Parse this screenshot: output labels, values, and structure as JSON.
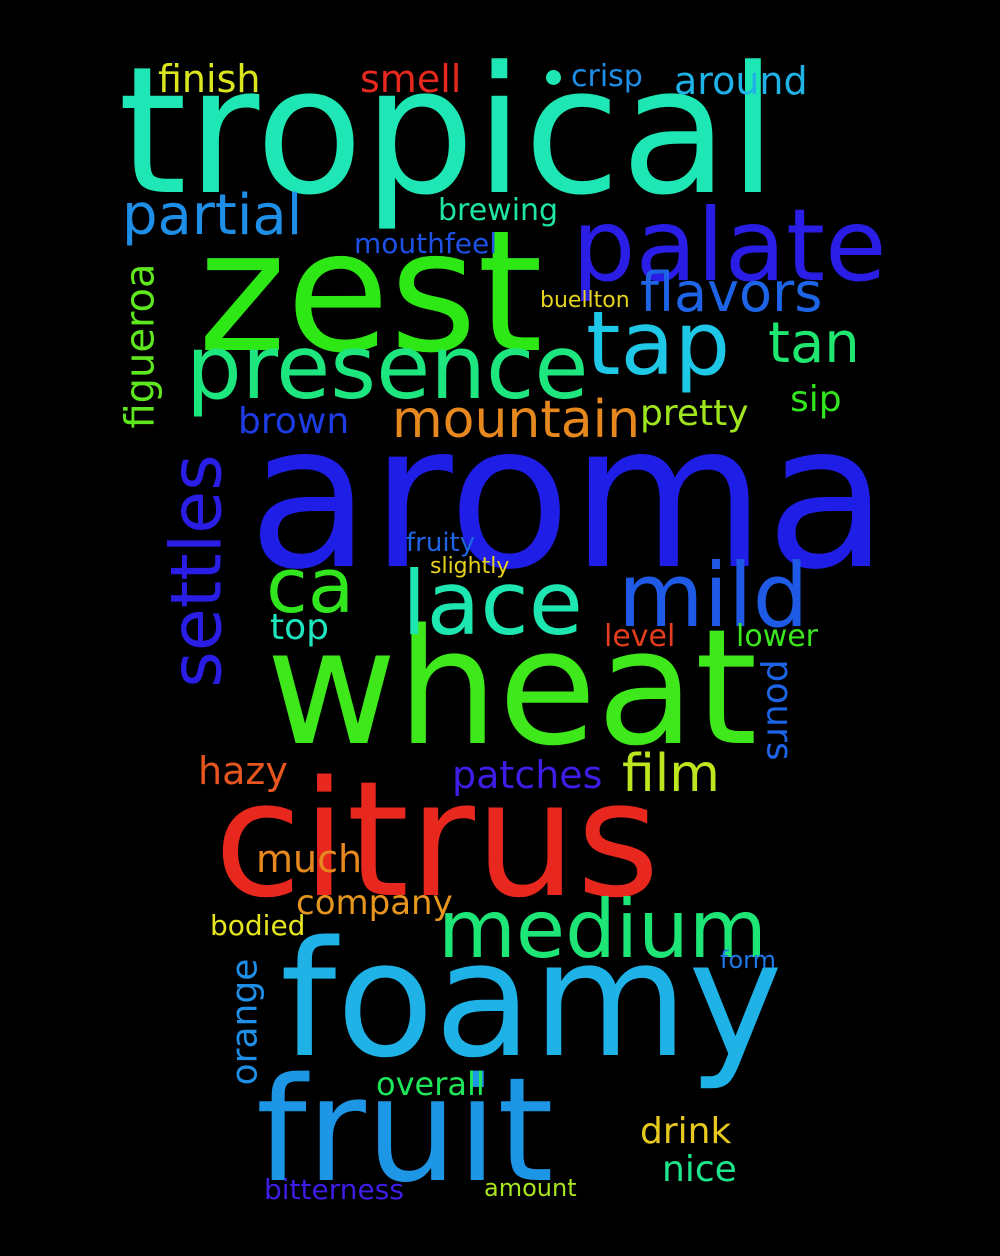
{
  "words": {
    "tropical": {
      "text": "tropical",
      "color": "#1ee6b4"
    },
    "zest": {
      "text": "zest",
      "color": "#2ee816"
    },
    "palate": {
      "text": "palate",
      "color": "#2a1ee6"
    },
    "aroma": {
      "text": "aroma",
      "color": "#1e1ee6"
    },
    "wheat": {
      "text": "wheat",
      "color": "#3ee81a"
    },
    "citrus": {
      "text": "citrus",
      "color": "#e8281e"
    },
    "foamy": {
      "text": "foamy",
      "color": "#1eb2e6"
    },
    "fruit": {
      "text": "fruit",
      "color": "#1e96e6"
    },
    "presence": {
      "text": "presence",
      "color": "#1ee67e"
    },
    "tap": {
      "text": "tap",
      "color": "#1ec8e6"
    },
    "lace": {
      "text": "lace",
      "color": "#1ee6b0"
    },
    "mild": {
      "text": "mild",
      "color": "#1e5ae6"
    },
    "ca": {
      "text": "ca",
      "color": "#32e61e"
    },
    "medium": {
      "text": "medium",
      "color": "#1ee676"
    },
    "partial": {
      "text": "partial",
      "color": "#1e8ee6"
    },
    "flavors": {
      "text": "flavors",
      "color": "#1e64e6"
    },
    "tan": {
      "text": "tan",
      "color": "#1ee66e"
    },
    "mountain": {
      "text": "mountain",
      "color": "#e6881e"
    },
    "film": {
      "text": "film",
      "color": "#bee61e"
    },
    "settles": {
      "text": "settles",
      "color": "#2a1ee6"
    },
    "figueroa": {
      "text": "figueroa",
      "color": "#5ee61e"
    },
    "pours": {
      "text": "pours",
      "color": "#1e64e6"
    },
    "orange": {
      "text": "orange",
      "color": "#1e8ee6"
    },
    "finish": {
      "text": "finish",
      "color": "#dce61e"
    },
    "smell": {
      "text": "smell",
      "color": "#e6281e"
    },
    "crisp": {
      "text": "crisp",
      "color": "#1e8ee6"
    },
    "crisp_dot": {
      "color": "#1ee6b4"
    },
    "around": {
      "text": "around",
      "color": "#1eb2e6"
    },
    "brewing": {
      "text": "brewing",
      "color": "#1ee6a0"
    },
    "mouthfeel": {
      "text": "mouthfeel",
      "color": "#1e50e6"
    },
    "buellton": {
      "text": "buellton",
      "color": "#e6d21e"
    },
    "brown": {
      "text": "brown",
      "color": "#1e3ce6"
    },
    "pretty": {
      "text": "pretty",
      "color": "#a0e61e"
    },
    "sip": {
      "text": "sip",
      "color": "#32e61e"
    },
    "fruity": {
      "text": "fruity",
      "color": "#1e64e6"
    },
    "slightly": {
      "text": "slightly",
      "color": "#e6d21e"
    },
    "top": {
      "text": "top",
      "color": "#1ee6be"
    },
    "level": {
      "text": "level",
      "color": "#e63c1e"
    },
    "lower": {
      "text": "lower",
      "color": "#3ce61e"
    },
    "hazy": {
      "text": "hazy",
      "color": "#e6561e"
    },
    "patches": {
      "text": "patches",
      "color": "#3c1ee6"
    },
    "much": {
      "text": "much",
      "color": "#e6881e"
    },
    "company": {
      "text": "company",
      "color": "#e6961e"
    },
    "bodied": {
      "text": "bodied",
      "color": "#e6e61e"
    },
    "form": {
      "text": "form",
      "color": "#1e78e6"
    },
    "overall": {
      "text": "overall",
      "color": "#1ee65a"
    },
    "drink": {
      "text": "drink",
      "color": "#e6c81e"
    },
    "nice": {
      "text": "nice",
      "color": "#1ee68c"
    },
    "bitterness": {
      "text": "bitterness",
      "color": "#3c1ee6"
    },
    "amount": {
      "text": "amount",
      "color": "#aae61e"
    }
  }
}
